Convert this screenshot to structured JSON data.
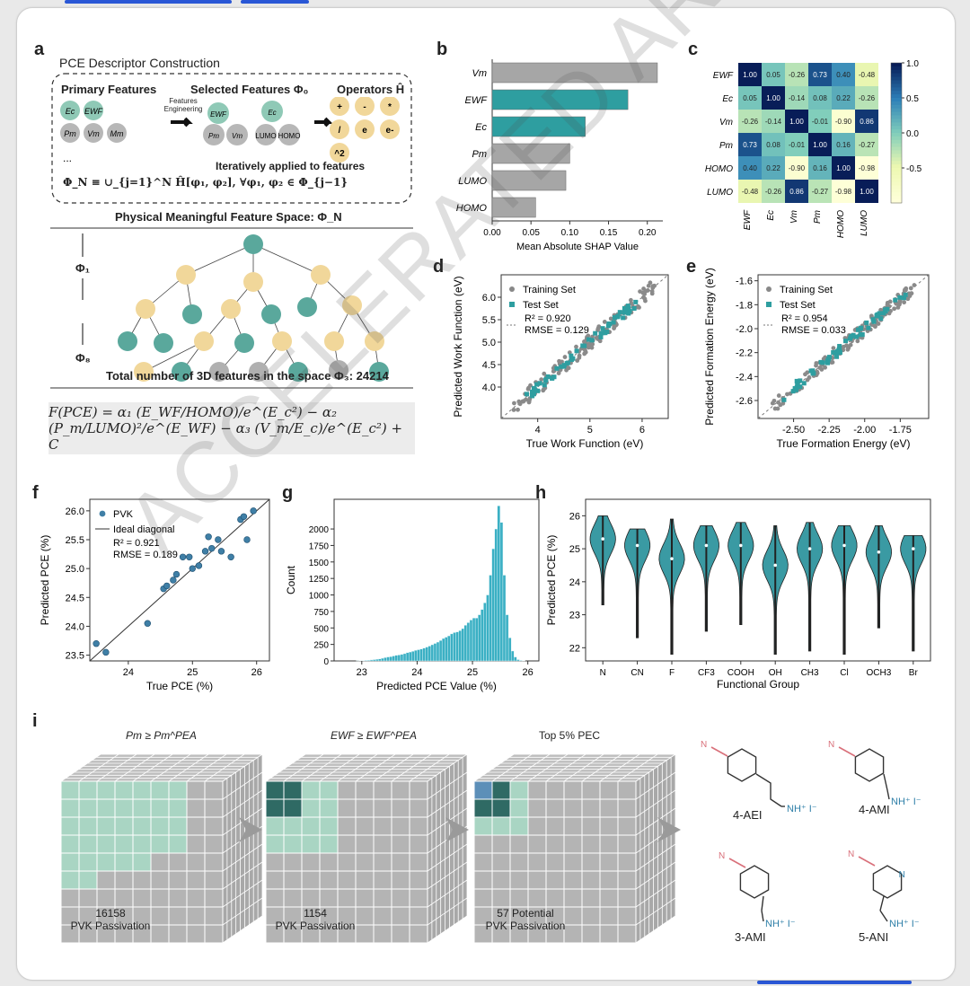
{
  "panels": {
    "a": {
      "label": "a",
      "title": "PCE Descriptor Construction",
      "primary_features": "Primary Features",
      "selected_features": "Selected Features Φ₀",
      "operators": "Operators Ĥ",
      "feat_eng": "Features Engineering",
      "primary_nodes": [
        "Ec",
        "EWF",
        "Pm",
        "Vm",
        "Mm"
      ],
      "selected_nodes": [
        "EWF",
        "Ec",
        "Pm",
        "Vm",
        "LUMO",
        "HOMO"
      ],
      "operator_nodes": [
        "+",
        "-",
        "*",
        "/",
        "e",
        "e-",
        "^2"
      ],
      "ellipsis": "...",
      "iter_text": "Iteratively applied to features",
      "phiN_formula": "Φ_N ≡ ∪_{j=1}^N Ĥ[φ₁, φ₂], ∀φ₁, φ₂ ∈ Φ_{j−1}",
      "space_label": "Physical Meaningful Feature Space: Φ_N",
      "phi1": "Φ₁",
      "phi8": "Φ₈",
      "total_text": "Total number of 3D features in the space Φ₃: 24214",
      "equation": "F(PCE) = α₁ (E_WF/HOMO)/e^(E_c²) − α₂ (P_m/LUMO)²/e^(E_WF) − α₃ (V_m/E_c)/e^(E_c²) + C"
    },
    "b": {
      "label": "b"
    },
    "c": {
      "label": "c"
    },
    "d": {
      "label": "d"
    },
    "e": {
      "label": "e"
    },
    "f": {
      "label": "f"
    },
    "g": {
      "label": "g"
    },
    "h": {
      "label": "h"
    },
    "i": {
      "label": "i",
      "cubes": [
        {
          "title": "Pm ≥ Pm^PEA",
          "count": "16158",
          "caption": "PVK Passivation"
        },
        {
          "title": "EWF ≥ EWF^PEA",
          "count": "1154",
          "caption": "PVK Passivation"
        },
        {
          "title": "Top 5% PEC",
          "count": "57 Potential",
          "caption": "PVK Passivation"
        }
      ],
      "molecules": [
        "4-AEI",
        "4-AMI",
        "3-AMI",
        "5-ANI"
      ],
      "n_label": "N",
      "nh_label": "NH⁺ I⁻"
    }
  },
  "watermark": "ACCELERATED ARTICLE PREVIEW",
  "colors": {
    "teal": "#2e9ea0",
    "gray": "#a6a6a6",
    "yellow": "#f1d79a",
    "dark": "#1d4e89"
  },
  "chart_data": [
    {
      "id": "b",
      "type": "bar",
      "categories": [
        "Vm",
        "EWF",
        "Ec",
        "Pm",
        "LUMO",
        "HOMO"
      ],
      "values": [
        0.213,
        0.175,
        0.12,
        0.1,
        0.095,
        0.056
      ],
      "xlabel": "Mean Absolute SHAP Value",
      "xlim": [
        0,
        0.22
      ],
      "xticks": [
        "0.00",
        "0.05",
        "0.10",
        "0.15",
        "0.20"
      ],
      "highlight": [
        "EWF",
        "Ec"
      ]
    },
    {
      "id": "c",
      "type": "heatmap",
      "labels": [
        "EWF",
        "Ec",
        "Vm",
        "Pm",
        "HOMO",
        "LUMO"
      ],
      "matrix": [
        [
          "1.00",
          "0.05",
          "-0.26",
          "0.73",
          "0.40",
          "-0.48"
        ],
        [
          "0.05",
          "1.00",
          "-0.14",
          "0.08",
          "0.22",
          "-0.26"
        ],
        [
          "-0.26",
          "-0.14",
          "1.00",
          "-0.01",
          "-0.90",
          "0.86"
        ],
        [
          "0.73",
          "0.08",
          "-0.01",
          "1.00",
          "0.16",
          "-0.27"
        ],
        [
          "0.40",
          "0.22",
          "-0.90",
          "0.16",
          "1.00",
          "-0.98"
        ],
        [
          "-0.48",
          "-0.26",
          "0.86",
          "-0.27",
          "-0.98",
          "1.00"
        ]
      ],
      "colorbar_ticks": [
        "1.0",
        "0.5",
        "0.0",
        "-0.5"
      ]
    },
    {
      "id": "d",
      "type": "scatter",
      "xlabel": "True Work Function (eV)",
      "ylabel": "Predicted Work Function (eV)",
      "xlim": [
        3.3,
        6.5
      ],
      "ylim": [
        3.3,
        6.5
      ],
      "xticks": [
        "4",
        "5",
        "6"
      ],
      "yticks": [
        "4.0",
        "4.5",
        "5.0",
        "5.5",
        "6.0"
      ],
      "series": [
        {
          "name": "Training Set"
        },
        {
          "name": "Test Set"
        }
      ],
      "r2": "R² = 0.920",
      "rmse": "RMSE = 0.129"
    },
    {
      "id": "e",
      "type": "scatter",
      "xlabel": "True Formation Energy (eV)",
      "ylabel": "Predicted Formation Energy (eV)",
      "xlim": [
        -2.75,
        -1.55
      ],
      "ylim": [
        -2.75,
        -1.55
      ],
      "xticks": [
        "-2.50",
        "-2.25",
        "-2.00",
        "-1.75"
      ],
      "yticks": [
        "-2.6",
        "-2.4",
        "-2.2",
        "-2.0",
        "-1.8",
        "-1.6"
      ],
      "series": [
        {
          "name": "Training Set"
        },
        {
          "name": "Test Set"
        }
      ],
      "r2": "R² = 0.954",
      "rmse": "RMSE = 0.033"
    },
    {
      "id": "f",
      "type": "scatter",
      "xlabel": "True PCE (%)",
      "ylabel": "Predicted PCE (%)",
      "xlim": [
        23.4,
        26.2
      ],
      "ylim": [
        23.4,
        26.2
      ],
      "xticks": [
        "24",
        "25",
        "26"
      ],
      "yticks": [
        "23.5",
        "24.0",
        "24.5",
        "25.0",
        "25.5",
        "26.0"
      ],
      "series": [
        {
          "name": "PVK",
          "x": [
            23.5,
            23.65,
            24.3,
            24.55,
            24.6,
            24.7,
            24.75,
            24.85,
            24.95,
            25.0,
            25.1,
            25.2,
            25.25,
            25.3,
            25.4,
            25.45,
            25.6,
            25.75,
            25.8,
            25.85,
            25.95
          ],
          "y": [
            23.7,
            23.55,
            24.05,
            24.65,
            24.7,
            24.8,
            24.9,
            25.2,
            25.2,
            25.0,
            25.05,
            25.3,
            25.55,
            25.35,
            25.5,
            25.3,
            25.2,
            25.85,
            25.9,
            25.5,
            26.0
          ]
        },
        {
          "name": "Ideal diagonal"
        }
      ],
      "r2": "R² = 0.921",
      "rmse": "RMSE = 0.189"
    },
    {
      "id": "g",
      "type": "bar",
      "xlabel": "Predicted PCE Value (%)",
      "ylabel": "Count",
      "xlim": [
        22.5,
        26.2
      ],
      "ylim": [
        0,
        2450
      ],
      "xticks": [
        "23",
        "24",
        "25",
        "26"
      ],
      "yticks": [
        "0",
        "250",
        "500",
        "750",
        "1000",
        "1250",
        "1500",
        "1750",
        "2000"
      ],
      "bin_start": 22.9,
      "bin_width": 0.05,
      "values": [
        2,
        3,
        5,
        8,
        10,
        15,
        20,
        25,
        30,
        40,
        50,
        60,
        65,
        75,
        85,
        90,
        100,
        110,
        125,
        135,
        145,
        160,
        170,
        180,
        195,
        210,
        225,
        245,
        265,
        285,
        310,
        340,
        360,
        380,
        410,
        430,
        440,
        460,
        490,
        540,
        580,
        620,
        650,
        650,
        700,
        780,
        880,
        1000,
        1300,
        1700,
        2000,
        2350,
        2100,
        1300,
        700,
        350,
        150,
        60,
        20,
        8,
        3
      ]
    },
    {
      "id": "h",
      "type": "violin",
      "xlabel": "Functional Group",
      "ylabel": "Predicted PCE (%)",
      "ylim": [
        21.6,
        26.5
      ],
      "yticks": [
        "22",
        "23",
        "24",
        "25",
        "26"
      ],
      "categories": [
        "N",
        "CN",
        "F",
        "CF3",
        "COOH",
        "OH",
        "CH3",
        "Cl",
        "OCH3",
        "Br"
      ],
      "min": [
        23.3,
        22.3,
        21.8,
        22.5,
        22.7,
        21.8,
        21.9,
        21.8,
        22.6,
        21.9
      ],
      "max": [
        26.0,
        25.6,
        25.9,
        25.7,
        25.8,
        25.7,
        25.8,
        25.7,
        25.7,
        25.4
      ],
      "median": [
        25.3,
        25.1,
        24.7,
        25.1,
        25.1,
        24.5,
        25.0,
        25.1,
        24.9,
        25.0
      ]
    }
  ]
}
